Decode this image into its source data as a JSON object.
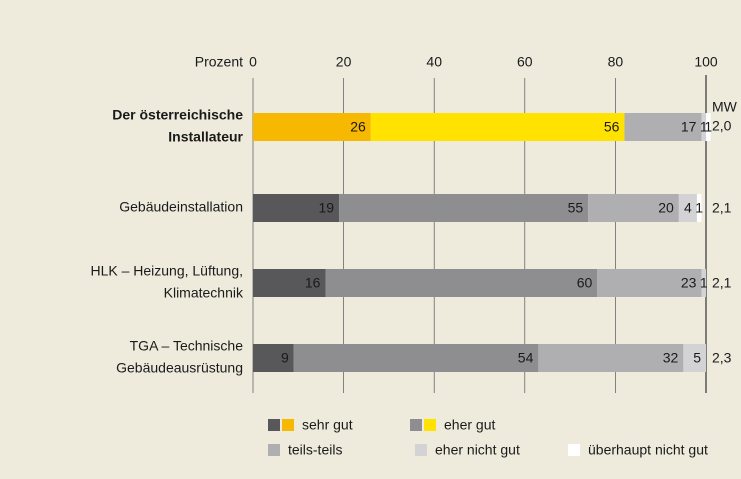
{
  "chart_data": {
    "type": "stacked_barh",
    "x_axis_label": "Prozent",
    "xlim": [
      0,
      100
    ],
    "xticks": [
      0,
      20,
      40,
      60,
      80,
      100
    ],
    "grid": true,
    "categories": [
      [
        "Der österreichische",
        "Installateur"
      ],
      [
        "Gebäudeinstallation"
      ],
      [
        "HLK – Heizung, Lüftung,",
        "Klimatechnik"
      ],
      [
        "TGA – Technische",
        "Gebäudeausrüstung"
      ]
    ],
    "highlight_category": 0,
    "highlight_colors": [
      "#f6b800",
      "#ffe200"
    ],
    "series": [
      {
        "name": "sehr gut",
        "color": "#58585a",
        "values": [
          26,
          19,
          16,
          9
        ]
      },
      {
        "name": "eher gut",
        "color": "#8e8e90",
        "values": [
          56,
          55,
          60,
          54
        ]
      },
      {
        "name": "teils-teils",
        "color": "#afafb1",
        "values": [
          17,
          20,
          23,
          32
        ]
      },
      {
        "name": "eher nicht gut",
        "color": "#d3d3d5",
        "values": [
          1,
          4,
          1,
          5
        ]
      },
      {
        "name": "überhaupt nicht gut",
        "color": "#ffffff",
        "values": [
          1,
          1,
          null,
          null
        ]
      }
    ],
    "mw_label": "MW",
    "mw_values": [
      "2,0",
      "2,1",
      "2,1",
      "2,3"
    ]
  }
}
